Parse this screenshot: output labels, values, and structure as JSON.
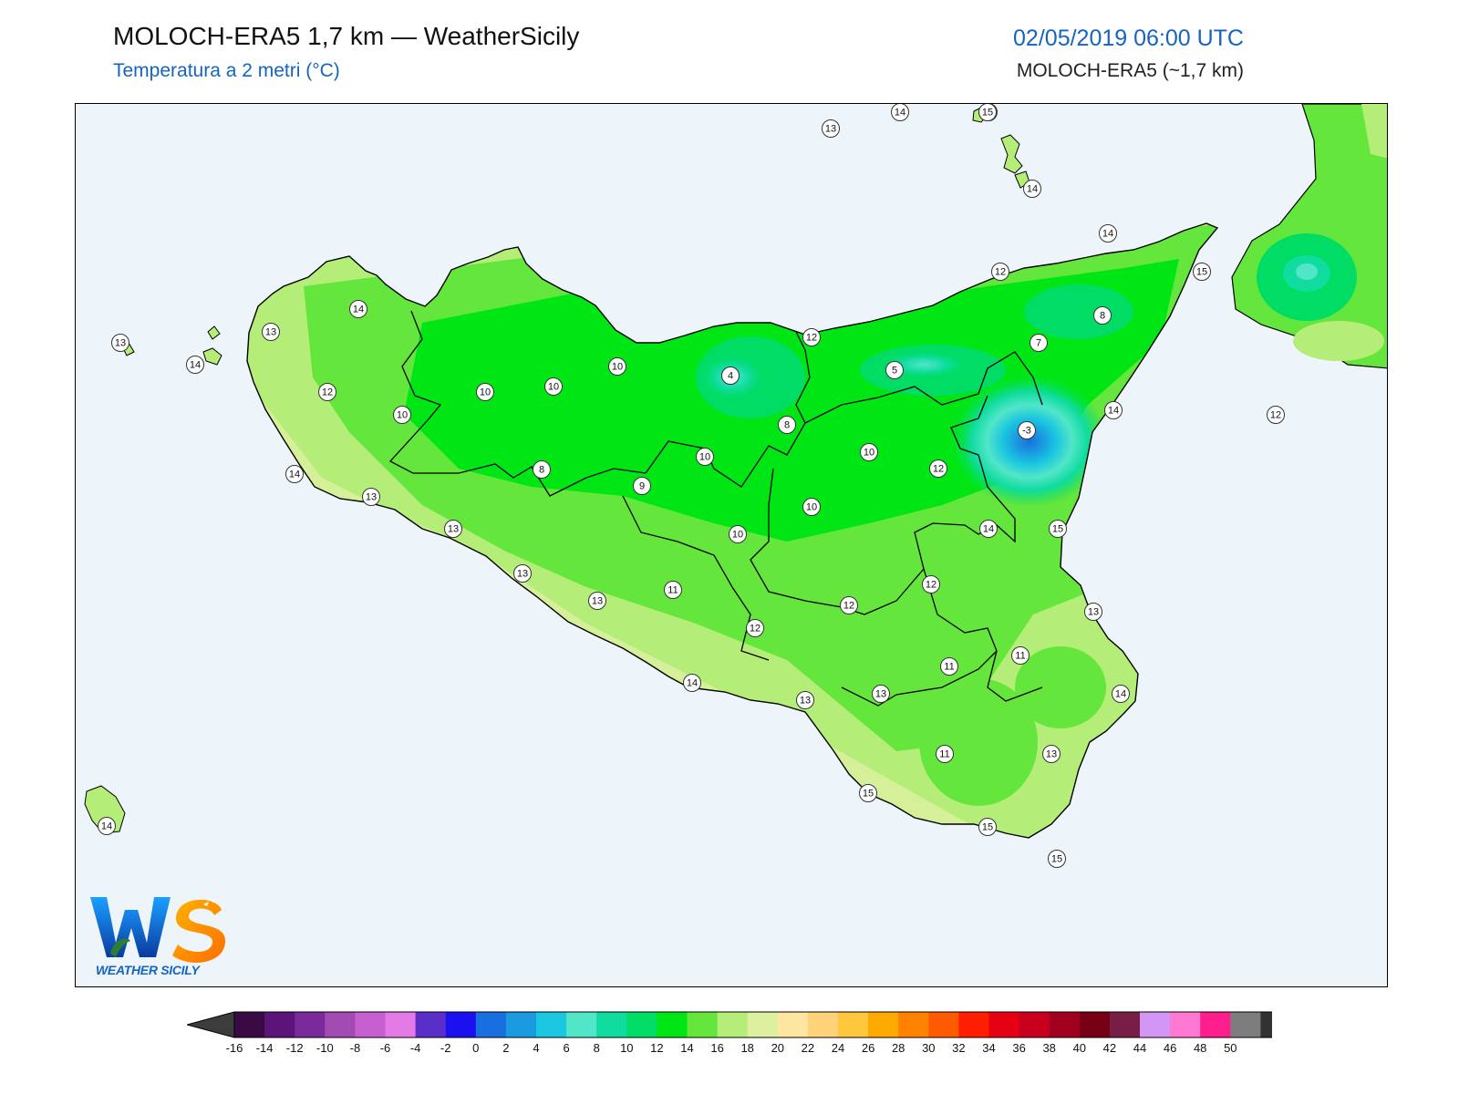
{
  "header": {
    "title": "MOLOCH-ERA5 1,7 km — WeatherSicily",
    "subtitle": "Temperatura a 2 metri (°C)",
    "datetime": "02/05/2019 06:00 UTC",
    "model": "MOLOCH-ERA5 (~1,7 km)"
  },
  "logo": {
    "letters": "WS",
    "text": "WEATHER SICILY"
  },
  "colors": {
    "sea": "#edf5fa",
    "title_blue": "#1565c0"
  },
  "map_labels": [
    {
      "v": "13"
    },
    {
      "v": "14"
    },
    {
      "v": "13"
    },
    {
      "v": "14"
    },
    {
      "v": "14"
    },
    {
      "v": "12"
    },
    {
      "v": "15"
    },
    {
      "v": "12"
    },
    {
      "v": "8"
    },
    {
      "v": "7"
    },
    {
      "v": "4"
    },
    {
      "v": "5"
    },
    {
      "v": "12"
    },
    {
      "v": "14"
    },
    {
      "v": "-3"
    },
    {
      "v": "13"
    },
    {
      "v": "15"
    },
    {
      "v": "13"
    },
    {
      "v": "14"
    },
    {
      "v": "13"
    },
    {
      "v": "14"
    },
    {
      "v": "12"
    },
    {
      "v": "10"
    },
    {
      "v": "10"
    },
    {
      "v": "10"
    },
    {
      "v": "10"
    },
    {
      "v": "4"
    },
    {
      "v": "8"
    },
    {
      "v": "10"
    },
    {
      "v": "8"
    },
    {
      "v": "9"
    },
    {
      "v": "10"
    },
    {
      "v": "10"
    },
    {
      "v": "10"
    },
    {
      "v": "12"
    },
    {
      "v": "14"
    },
    {
      "v": "15"
    },
    {
      "v": "14"
    },
    {
      "v": "13"
    },
    {
      "v": "13"
    },
    {
      "v": "13"
    },
    {
      "v": "13"
    },
    {
      "v": "11"
    },
    {
      "v": "12"
    },
    {
      "v": "12"
    },
    {
      "v": "12"
    },
    {
      "v": "13"
    },
    {
      "v": "11"
    },
    {
      "v": "11"
    },
    {
      "v": "14"
    },
    {
      "v": "13"
    },
    {
      "v": "13"
    },
    {
      "v": "14"
    },
    {
      "v": "11"
    },
    {
      "v": "13"
    },
    {
      "v": "15"
    },
    {
      "v": "15"
    },
    {
      "v": "15"
    },
    {
      "v": "14"
    }
  ],
  "colorbar": {
    "ticks": [
      "-16",
      "-14",
      "-12",
      "-10",
      "-8",
      "-6",
      "-4",
      "-2",
      "0",
      "2",
      "4",
      "6",
      "8",
      "10",
      "12",
      "14",
      "16",
      "18",
      "20",
      "22",
      "24",
      "26",
      "28",
      "30",
      "32",
      "34",
      "36",
      "38",
      "40",
      "42",
      "44",
      "46",
      "48",
      "50"
    ],
    "colors": [
      "#3a0a44",
      "#5a147a",
      "#7a2a9a",
      "#a24bb3",
      "#c65fd0",
      "#e47ae6",
      "#5a2ec8",
      "#1a10f0",
      "#1a6fe0",
      "#1a9be0",
      "#1ac6e0",
      "#52e6c8",
      "#10dca0",
      "#00dc64",
      "#00e614",
      "#64e63c",
      "#b4ee78",
      "#dcf0a0",
      "#ffe6a0",
      "#ffd278",
      "#ffc83c",
      "#ffaa00",
      "#ff8200",
      "#ff5a00",
      "#ff1e00",
      "#e60014",
      "#c8001e",
      "#a0001e",
      "#780014",
      "#781e46",
      "#d296f5",
      "#ff78d2",
      "#ff1e8c",
      "#7d7d7d",
      "#323232"
    ],
    "under_color": "#3c3c3c",
    "over_color": "#000000"
  }
}
